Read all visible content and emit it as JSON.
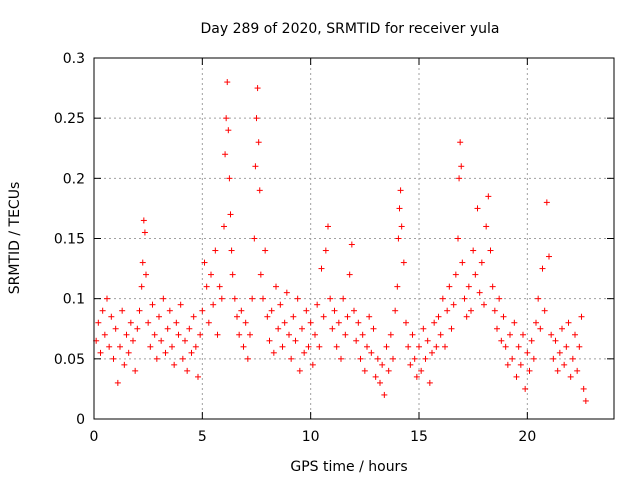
{
  "chart_data": {
    "type": "scatter",
    "title": "Day 289 of 2020, SRMTID for receiver yula",
    "xlabel": "GPS time / hours",
    "ylabel": "SRMTID / TECUs",
    "xlim": [
      0,
      24
    ],
    "ylim": [
      0,
      0.3
    ],
    "xticks": [
      0,
      5,
      10,
      15,
      20
    ],
    "xtick_labels": [
      "0",
      "5",
      "10",
      "15",
      "20"
    ],
    "yticks": [
      0,
      0.05,
      0.1,
      0.15,
      0.2,
      0.25,
      0.3
    ],
    "ytick_labels": [
      "0",
      "0.05",
      "0.1",
      "0.15",
      "0.2",
      "0.25",
      "0.3"
    ],
    "grid": true,
    "marker": "+",
    "marker_color": "#ff0000",
    "points": [
      [
        0.1,
        0.065
      ],
      [
        0.2,
        0.08
      ],
      [
        0.3,
        0.055
      ],
      [
        0.4,
        0.09
      ],
      [
        0.5,
        0.07
      ],
      [
        0.6,
        0.1
      ],
      [
        0.7,
        0.06
      ],
      [
        0.8,
        0.085
      ],
      [
        0.9,
        0.05
      ],
      [
        1.0,
        0.075
      ],
      [
        1.1,
        0.03
      ],
      [
        1.2,
        0.06
      ],
      [
        1.3,
        0.09
      ],
      [
        1.4,
        0.045
      ],
      [
        1.5,
        0.07
      ],
      [
        1.6,
        0.055
      ],
      [
        1.7,
        0.08
      ],
      [
        1.8,
        0.065
      ],
      [
        1.9,
        0.04
      ],
      [
        2.0,
        0.075
      ],
      [
        2.1,
        0.09
      ],
      [
        2.2,
        0.11
      ],
      [
        2.25,
        0.13
      ],
      [
        2.3,
        0.165
      ],
      [
        2.35,
        0.155
      ],
      [
        2.4,
        0.12
      ],
      [
        2.5,
        0.08
      ],
      [
        2.6,
        0.06
      ],
      [
        2.7,
        0.095
      ],
      [
        2.8,
        0.07
      ],
      [
        2.9,
        0.05
      ],
      [
        3.0,
        0.085
      ],
      [
        3.1,
        0.065
      ],
      [
        3.2,
        0.1
      ],
      [
        3.3,
        0.055
      ],
      [
        3.4,
        0.075
      ],
      [
        3.5,
        0.09
      ],
      [
        3.6,
        0.06
      ],
      [
        3.7,
        0.045
      ],
      [
        3.8,
        0.08
      ],
      [
        3.9,
        0.07
      ],
      [
        4.0,
        0.095
      ],
      [
        4.1,
        0.05
      ],
      [
        4.2,
        0.065
      ],
      [
        4.3,
        0.04
      ],
      [
        4.4,
        0.075
      ],
      [
        4.5,
        0.055
      ],
      [
        4.6,
        0.085
      ],
      [
        4.7,
        0.06
      ],
      [
        4.8,
        0.035
      ],
      [
        4.9,
        0.07
      ],
      [
        5.0,
        0.09
      ],
      [
        5.1,
        0.13
      ],
      [
        5.2,
        0.11
      ],
      [
        5.3,
        0.08
      ],
      [
        5.4,
        0.12
      ],
      [
        5.5,
        0.095
      ],
      [
        5.6,
        0.14
      ],
      [
        5.7,
        0.07
      ],
      [
        5.8,
        0.11
      ],
      [
        5.9,
        0.1
      ],
      [
        6.0,
        0.16
      ],
      [
        6.05,
        0.22
      ],
      [
        6.1,
        0.25
      ],
      [
        6.15,
        0.28
      ],
      [
        6.2,
        0.24
      ],
      [
        6.25,
        0.2
      ],
      [
        6.3,
        0.17
      ],
      [
        6.35,
        0.14
      ],
      [
        6.4,
        0.12
      ],
      [
        6.5,
        0.1
      ],
      [
        6.6,
        0.085
      ],
      [
        6.7,
        0.07
      ],
      [
        6.8,
        0.09
      ],
      [
        6.9,
        0.06
      ],
      [
        7.0,
        0.08
      ],
      [
        7.1,
        0.05
      ],
      [
        7.2,
        0.07
      ],
      [
        7.3,
        0.1
      ],
      [
        7.4,
        0.15
      ],
      [
        7.45,
        0.21
      ],
      [
        7.5,
        0.25
      ],
      [
        7.55,
        0.275
      ],
      [
        7.6,
        0.23
      ],
      [
        7.65,
        0.19
      ],
      [
        7.7,
        0.12
      ],
      [
        7.8,
        0.1
      ],
      [
        7.9,
        0.14
      ],
      [
        8.0,
        0.085
      ],
      [
        8.1,
        0.065
      ],
      [
        8.2,
        0.09
      ],
      [
        8.3,
        0.055
      ],
      [
        8.4,
        0.11
      ],
      [
        8.5,
        0.075
      ],
      [
        8.6,
        0.095
      ],
      [
        8.7,
        0.06
      ],
      [
        8.8,
        0.08
      ],
      [
        8.9,
        0.105
      ],
      [
        9.0,
        0.07
      ],
      [
        9.1,
        0.05
      ],
      [
        9.2,
        0.085
      ],
      [
        9.3,
        0.065
      ],
      [
        9.4,
        0.1
      ],
      [
        9.5,
        0.04
      ],
      [
        9.6,
        0.075
      ],
      [
        9.7,
        0.055
      ],
      [
        9.8,
        0.09
      ],
      [
        9.9,
        0.06
      ],
      [
        10.0,
        0.08
      ],
      [
        10.1,
        0.045
      ],
      [
        10.2,
        0.07
      ],
      [
        10.3,
        0.095
      ],
      [
        10.4,
        0.06
      ],
      [
        10.5,
        0.125
      ],
      [
        10.6,
        0.085
      ],
      [
        10.7,
        0.14
      ],
      [
        10.8,
        0.16
      ],
      [
        10.9,
        0.1
      ],
      [
        11.0,
        0.075
      ],
      [
        11.1,
        0.09
      ],
      [
        11.2,
        0.06
      ],
      [
        11.3,
        0.08
      ],
      [
        11.4,
        0.05
      ],
      [
        11.5,
        0.1
      ],
      [
        11.6,
        0.07
      ],
      [
        11.7,
        0.085
      ],
      [
        11.8,
        0.12
      ],
      [
        11.9,
        0.145
      ],
      [
        12.0,
        0.09
      ],
      [
        12.1,
        0.065
      ],
      [
        12.2,
        0.08
      ],
      [
        12.3,
        0.05
      ],
      [
        12.4,
        0.07
      ],
      [
        12.5,
        0.04
      ],
      [
        12.6,
        0.06
      ],
      [
        12.7,
        0.085
      ],
      [
        12.8,
        0.055
      ],
      [
        12.9,
        0.075
      ],
      [
        13.0,
        0.035
      ],
      [
        13.1,
        0.05
      ],
      [
        13.2,
        0.03
      ],
      [
        13.3,
        0.045
      ],
      [
        13.4,
        0.02
      ],
      [
        13.5,
        0.06
      ],
      [
        13.6,
        0.04
      ],
      [
        13.7,
        0.07
      ],
      [
        13.8,
        0.05
      ],
      [
        13.9,
        0.09
      ],
      [
        14.0,
        0.11
      ],
      [
        14.05,
        0.15
      ],
      [
        14.1,
        0.175
      ],
      [
        14.15,
        0.19
      ],
      [
        14.2,
        0.16
      ],
      [
        14.3,
        0.13
      ],
      [
        14.4,
        0.08
      ],
      [
        14.5,
        0.06
      ],
      [
        14.6,
        0.045
      ],
      [
        14.7,
        0.07
      ],
      [
        14.8,
        0.05
      ],
      [
        14.9,
        0.035
      ],
      [
        15.0,
        0.06
      ],
      [
        15.1,
        0.04
      ],
      [
        15.2,
        0.075
      ],
      [
        15.3,
        0.05
      ],
      [
        15.4,
        0.065
      ],
      [
        15.5,
        0.03
      ],
      [
        15.6,
        0.055
      ],
      [
        15.7,
        0.08
      ],
      [
        15.8,
        0.06
      ],
      [
        15.9,
        0.085
      ],
      [
        16.0,
        0.07
      ],
      [
        16.1,
        0.1
      ],
      [
        16.2,
        0.06
      ],
      [
        16.3,
        0.09
      ],
      [
        16.4,
        0.11
      ],
      [
        16.5,
        0.075
      ],
      [
        16.6,
        0.095
      ],
      [
        16.7,
        0.12
      ],
      [
        16.8,
        0.15
      ],
      [
        16.85,
        0.2
      ],
      [
        16.9,
        0.23
      ],
      [
        16.95,
        0.21
      ],
      [
        17.0,
        0.13
      ],
      [
        17.1,
        0.1
      ],
      [
        17.2,
        0.085
      ],
      [
        17.3,
        0.11
      ],
      [
        17.4,
        0.09
      ],
      [
        17.5,
        0.14
      ],
      [
        17.6,
        0.12
      ],
      [
        17.7,
        0.175
      ],
      [
        17.8,
        0.105
      ],
      [
        17.9,
        0.13
      ],
      [
        18.0,
        0.095
      ],
      [
        18.1,
        0.16
      ],
      [
        18.2,
        0.185
      ],
      [
        18.3,
        0.14
      ],
      [
        18.4,
        0.11
      ],
      [
        18.5,
        0.09
      ],
      [
        18.6,
        0.075
      ],
      [
        18.7,
        0.1
      ],
      [
        18.8,
        0.065
      ],
      [
        18.9,
        0.085
      ],
      [
        19.0,
        0.06
      ],
      [
        19.1,
        0.045
      ],
      [
        19.2,
        0.07
      ],
      [
        19.3,
        0.05
      ],
      [
        19.4,
        0.08
      ],
      [
        19.5,
        0.035
      ],
      [
        19.6,
        0.06
      ],
      [
        19.7,
        0.045
      ],
      [
        19.8,
        0.07
      ],
      [
        19.9,
        0.025
      ],
      [
        20.0,
        0.055
      ],
      [
        20.1,
        0.04
      ],
      [
        20.2,
        0.065
      ],
      [
        20.3,
        0.05
      ],
      [
        20.4,
        0.08
      ],
      [
        20.5,
        0.1
      ],
      [
        20.6,
        0.075
      ],
      [
        20.7,
        0.125
      ],
      [
        20.8,
        0.09
      ],
      [
        20.9,
        0.18
      ],
      [
        21.0,
        0.135
      ],
      [
        21.1,
        0.07
      ],
      [
        21.2,
        0.05
      ],
      [
        21.3,
        0.065
      ],
      [
        21.4,
        0.04
      ],
      [
        21.5,
        0.055
      ],
      [
        21.6,
        0.075
      ],
      [
        21.7,
        0.045
      ],
      [
        21.8,
        0.06
      ],
      [
        21.9,
        0.08
      ],
      [
        22.0,
        0.035
      ],
      [
        22.1,
        0.05
      ],
      [
        22.2,
        0.07
      ],
      [
        22.3,
        0.04
      ],
      [
        22.4,
        0.06
      ],
      [
        22.5,
        0.085
      ],
      [
        22.6,
        0.025
      ],
      [
        22.7,
        0.015
      ]
    ]
  }
}
